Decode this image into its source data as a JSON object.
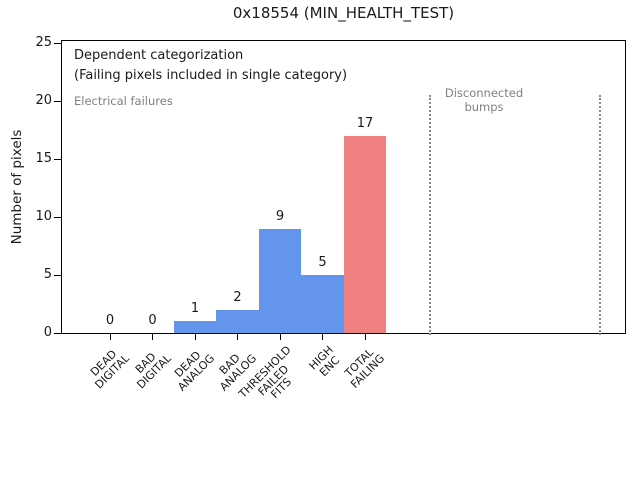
{
  "title": "0x18554 (MIN_HEALTH_TEST)",
  "ylabel": "Number of pixels",
  "annotations": {
    "dependent_line1": "Dependent categorization",
    "dependent_line2": "(Failing pixels included in single category)",
    "electrical": "Electrical failures",
    "disconnected": "Disconnected\nbumps"
  },
  "colors": {
    "bar_default": "#6495ed",
    "bar_total": "#f08080",
    "annotation_gray": "#808080",
    "dotted_line_gray": "#8a8a8a",
    "spine_black": "#000000"
  },
  "chart_data": {
    "type": "bar",
    "title": "0x18554 (MIN_HEALTH_TEST)",
    "ylabel": "Number of pixels",
    "categories": [
      "DEAD\nDIGITAL",
      "BAD\nDIGITAL",
      "DEAD\nANALOG",
      "BAD\nANALOG",
      "THRESHOLD\nFAILED\nFITS",
      "HIGH\nENC",
      "TOTAL\nFAILING"
    ],
    "values": [
      0,
      0,
      1,
      2,
      9,
      5,
      17
    ],
    "value_labels": [
      "0",
      "0",
      "1",
      "2",
      "9",
      "5",
      "17"
    ],
    "bar_colors": [
      "#6495ed",
      "#6495ed",
      "#6495ed",
      "#6495ed",
      "#6495ed",
      "#6495ed",
      "#f08080"
    ],
    "yticks": [
      0,
      5,
      10,
      15,
      20,
      25
    ],
    "ylim": [
      0,
      25.2
    ],
    "grid": false,
    "legend": null,
    "xtick_rotation": 45,
    "bars_contiguous": true,
    "disconnected_region": {
      "label": "Disconnected\nbumps",
      "line_style": "dotted",
      "line_indices": [
        7.5,
        11.5
      ],
      "label_index": 8.8,
      "top_value": 20.5
    }
  }
}
